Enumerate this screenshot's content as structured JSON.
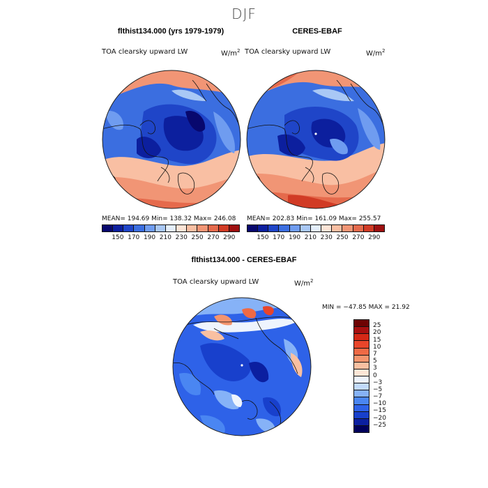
{
  "figure": {
    "title": "DJF"
  },
  "colors": {
    "levels": [
      "#08086e",
      "#0c1f9e",
      "#1f45c8",
      "#3b6ee0",
      "#6f9cf0",
      "#a9c8f5",
      "#e4eefb",
      "#fce4d6",
      "#f9bfa3",
      "#f19575",
      "#e56a4c",
      "#d13b25",
      "#9e1010"
    ],
    "diff_levels": [
      "#00005c",
      "#0b1fa0",
      "#1840cc",
      "#2e62e8",
      "#4a86f2",
      "#86b2f7",
      "#c2dafb",
      "#eef4fd",
      "#fde6d6",
      "#f9c0a1",
      "#f4946d",
      "#ef6a45",
      "#e8452a",
      "#d42816",
      "#a80f0f",
      "#6e0303"
    ]
  },
  "panels": [
    {
      "title": "flthist134.000 (yrs 1979-1979)",
      "var_label": "TOA clearsky upward LW",
      "units": "W/m",
      "units_exp": "2",
      "stats": "MEAN= 194.69   Min= 138.32   Max= 246.08"
    },
    {
      "title": "CERES-EBAF",
      "var_label": "TOA clearsky upward LW",
      "units": "W/m",
      "units_exp": "2",
      "stats": "MEAN= 202.83   Min= 161.09   Max= 255.57"
    },
    {
      "title": "flthist134.000 - CERES-EBAF",
      "var_label": "TOA clearsky upward LW",
      "units": "W/m",
      "units_exp": "2",
      "stats": "MIN = −47.85  MAX =  21.92"
    }
  ],
  "chart_data": [
    {
      "type": "heatmap",
      "projection": "north polar stereographic",
      "title": "flthist134.000 (yrs 1979-1979)",
      "variable": "TOA clearsky upward LW",
      "units": "W/m2",
      "mean": 194.69,
      "min": 138.32,
      "max": 246.08,
      "colorbar_ticks": [
        "150",
        "170",
        "190",
        "210",
        "230",
        "250",
        "270",
        "290"
      ]
    },
    {
      "type": "heatmap",
      "projection": "north polar stereographic",
      "title": "CERES-EBAF",
      "variable": "TOA clearsky upward LW",
      "units": "W/m2",
      "mean": 202.83,
      "min": 161.09,
      "max": 255.57,
      "colorbar_ticks": [
        "150",
        "170",
        "190",
        "210",
        "230",
        "250",
        "270",
        "290"
      ]
    },
    {
      "type": "heatmap",
      "projection": "north polar stereographic",
      "title": "flthist134.000 - CERES-EBAF",
      "variable": "TOA clearsky upward LW",
      "units": "W/m2",
      "min": -47.85,
      "max": 21.92,
      "colorbar_ticks": [
        "25",
        "20",
        "15",
        "10",
        "7",
        "5",
        "3",
        "0",
        "−3",
        "−5",
        "−7",
        "−10",
        "−15",
        "−20",
        "−25"
      ]
    }
  ]
}
